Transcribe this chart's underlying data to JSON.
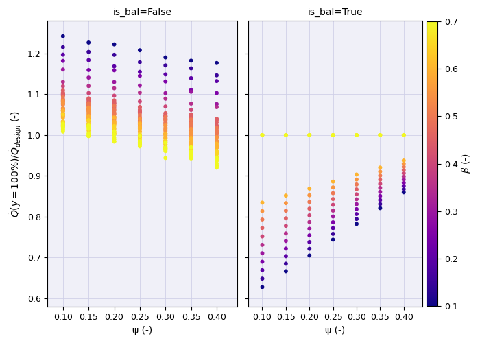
{
  "subplot_titles": [
    "is_bal=False",
    "is_bal=True"
  ],
  "xlabel": "ψ (-)",
  "ylabel_latex": true,
  "colorbar_label": "β (-)",
  "cmap": "plasma",
  "vmin": 0.1,
  "vmax": 0.7,
  "xlim": [
    0.07,
    0.44
  ],
  "ylim": [
    0.58,
    1.28
  ],
  "xticks": [
    0.1,
    0.15,
    0.2,
    0.25,
    0.3,
    0.35,
    0.4
  ],
  "yticks": [
    0.6,
    0.7,
    0.8,
    0.9,
    1.0,
    1.1,
    1.2
  ],
  "figsize": [
    7.0,
    5.0
  ],
  "dpi": 100,
  "background": "#f0f0f8",
  "dot_size": 18,
  "beta_values": [
    0.1,
    0.15,
    0.2,
    0.25,
    0.3,
    0.35,
    0.4,
    0.45,
    0.5,
    0.55,
    0.6,
    0.65,
    0.7
  ],
  "psi_values": [
    0.1,
    0.15,
    0.2,
    0.25,
    0.3,
    0.35,
    0.4
  ]
}
